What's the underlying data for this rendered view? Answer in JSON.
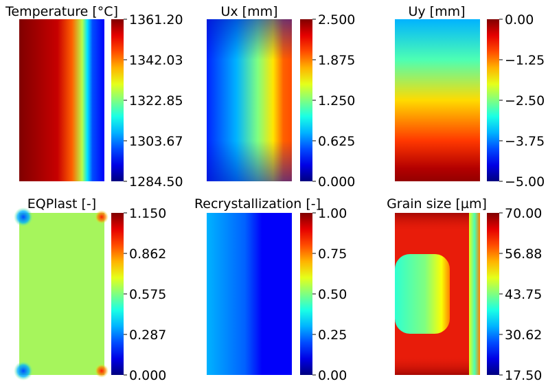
{
  "chart_data": [
    {
      "type": "heatmap",
      "title": "Temperature [°C]",
      "colormap": "jet",
      "range": [
        1284.5,
        1361.2
      ],
      "colorbar_ticks": [
        "1361.20",
        "1342.03",
        "1322.85",
        "1303.67",
        "1284.50"
      ],
      "field": "temperature",
      "description_value_left": 1361.2,
      "description_value_right": 1284.5
    },
    {
      "type": "heatmap",
      "title": "Ux [mm]",
      "colormap": "jet",
      "range": [
        0.0,
        2.5
      ],
      "colorbar_ticks": [
        "2.500",
        "1.875",
        "1.250",
        "0.625",
        "0.000"
      ],
      "field": "ux"
    },
    {
      "type": "heatmap",
      "title": "Uy [mm]",
      "colormap": "jet",
      "range": [
        -5.0,
        0.0
      ],
      "colorbar_ticks": [
        "0.00",
        "−1.25",
        "−2.50",
        "−3.75",
        "−5.00"
      ],
      "field": "uy"
    },
    {
      "type": "heatmap",
      "title": "EQPlast [-]",
      "colormap": "jet",
      "range": [
        0.0,
        1.15
      ],
      "colorbar_ticks": [
        "1.150",
        "0.862",
        "0.575",
        "0.287",
        "0.000"
      ],
      "field": "eqplast"
    },
    {
      "type": "heatmap",
      "title": "Recrystallization [-]",
      "colormap": "jet",
      "range": [
        0.0,
        1.0
      ],
      "colorbar_ticks": [
        "1.00",
        "0.75",
        "0.50",
        "0.25",
        "0.00"
      ],
      "field": "recrystallization"
    },
    {
      "type": "heatmap",
      "title": "Grain size [µm]",
      "colormap": "jet",
      "range": [
        17.5,
        70.0
      ],
      "colorbar_ticks": [
        "70.00",
        "56.88",
        "43.75",
        "30.62",
        "17.50"
      ],
      "field": "grainsize"
    }
  ]
}
